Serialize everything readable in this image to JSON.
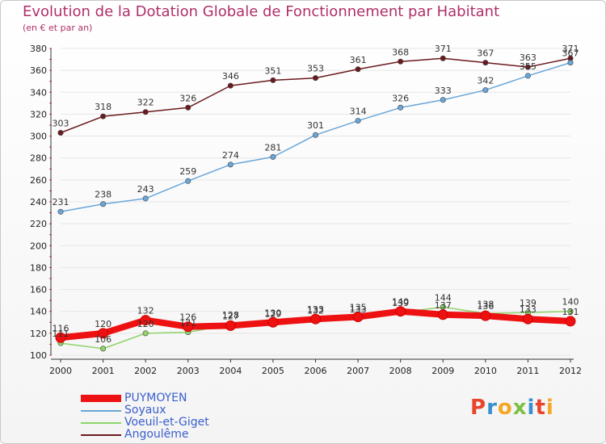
{
  "chart_data": {
    "type": "line",
    "title": "Evolution de la Dotation Globale de Fonctionnement par Habitant",
    "subtitle": "(en € et par an)",
    "categories": [
      "2000",
      "2001",
      "2002",
      "2003",
      "2004",
      "2005",
      "2006",
      "2007",
      "2008",
      "2009",
      "2010",
      "2011",
      "2012"
    ],
    "ylim": [
      100,
      380
    ],
    "yticks": [
      100,
      120,
      140,
      160,
      180,
      200,
      220,
      240,
      260,
      280,
      300,
      320,
      340,
      360,
      380
    ],
    "series": [
      {
        "name": "Angoulême",
        "color": "#6b1a1e",
        "values": [
          303,
          318,
          322,
          326,
          346,
          351,
          353,
          361,
          368,
          371,
          367,
          363,
          371
        ]
      },
      {
        "name": "Soyaux",
        "color": "#6aa6d8",
        "values": [
          231,
          238,
          243,
          259,
          274,
          281,
          301,
          314,
          326,
          333,
          342,
          355,
          367
        ]
      },
      {
        "name": "Voeuil-et-Giget",
        "color": "#8ed46a",
        "values": [
          111,
          106,
          120,
          121,
          128,
          129,
          132,
          133,
          139,
          144,
          138,
          139,
          140
        ]
      },
      {
        "name": "PUYMOYEN",
        "color": "#ee1111",
        "values": [
          116,
          120,
          132,
          126,
          127,
          130,
          133,
          135,
          140,
          137,
          136,
          133,
          131
        ]
      }
    ],
    "legend": [
      "PUYMOYEN",
      "Soyaux",
      "Voeuil-et-Giget",
      "Angoulême"
    ]
  },
  "logo": {
    "letters": [
      "P",
      "r",
      "o",
      "x",
      "i",
      "t",
      "i"
    ],
    "colors": [
      "#e8452c",
      "#3a8fd0",
      "#f5a623",
      "#7bc043",
      "#3a8fd0",
      "#e8452c",
      "#f5a623"
    ]
  }
}
